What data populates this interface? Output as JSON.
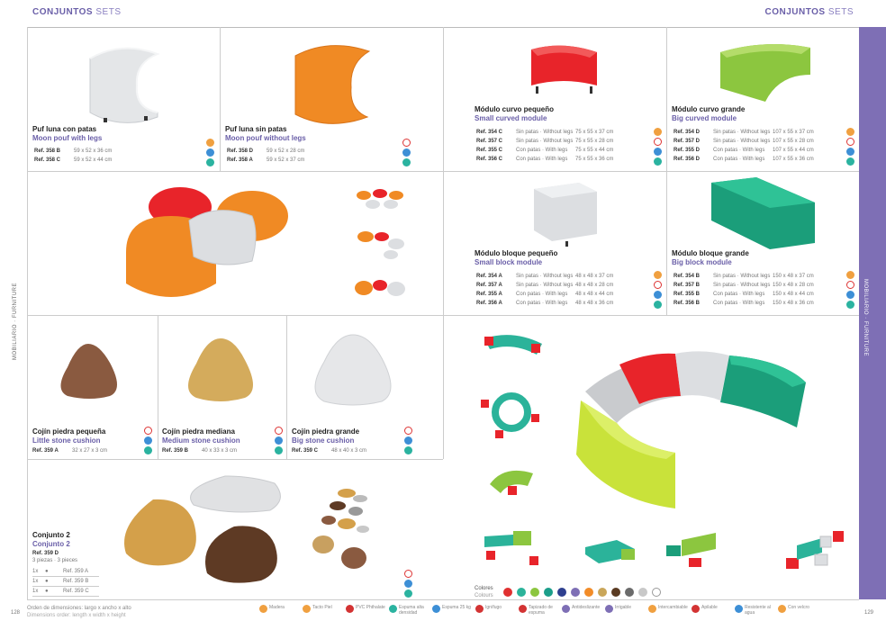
{
  "header": {
    "left_bold": "CONJUNTOS",
    "left_light": "SETS",
    "right_bold": "CONJUNTOS",
    "right_light": "SETS"
  },
  "side": {
    "left": "MOBILIARIO · FURNITURE",
    "right": "MOBILIARIO · FURNITURE"
  },
  "products": {
    "moon_legs": {
      "title": "Puf luna con patas",
      "sub": "Moon pouf with legs",
      "rows": [
        {
          "ref": "Ref. 358 B",
          "dims": "59 x 52 x 36 cm"
        },
        {
          "ref": "Ref. 358 C",
          "dims": "59 x 52 x 44 cm"
        }
      ]
    },
    "moon_nolegs": {
      "title": "Puf luna sin patas",
      "sub": "Moon pouf without legs",
      "rows": [
        {
          "ref": "Ref. 358 D",
          "dims": "59 x 52 x 28 cm"
        },
        {
          "ref": "Ref. 358 A",
          "dims": "59 x 52 x 37 cm"
        }
      ]
    },
    "curve_small": {
      "title": "Módulo curvo pequeño",
      "sub": "Small curved module",
      "rows": [
        {
          "ref": "Ref. 354 C",
          "type": "Sin patas · Without legs",
          "dims": "75 x 55 x 37 cm"
        },
        {
          "ref": "Ref. 357 C",
          "type": "Sin patas · Without legs",
          "dims": "75 x 55 x 28 cm"
        },
        {
          "ref": "Ref. 355 C",
          "type": "Con patas · With legs",
          "dims": "75 x 55 x 44 cm"
        },
        {
          "ref": "Ref. 356 C",
          "type": "Con patas · With legs",
          "dims": "75 x 55 x 36 cm"
        }
      ]
    },
    "curve_big": {
      "title": "Módulo curvo grande",
      "sub": "Big curved module",
      "rows": [
        {
          "ref": "Ref. 354 D",
          "type": "Sin patas · Without legs",
          "dims": "107 x 55 x 37 cm"
        },
        {
          "ref": "Ref. 357 D",
          "type": "Sin patas · Without legs",
          "dims": "107 x 55 x 28 cm"
        },
        {
          "ref": "Ref. 355 D",
          "type": "Con patas · With legs",
          "dims": "107 x 55 x 44 cm"
        },
        {
          "ref": "Ref. 356 D",
          "type": "Con patas · With legs",
          "dims": "107 x 55 x 36 cm"
        }
      ]
    },
    "block_small": {
      "title": "Módulo bloque pequeño",
      "sub": "Small block module",
      "rows": [
        {
          "ref": "Ref. 354 A",
          "type": "Sin patas · Without legs",
          "dims": "48 x 48 x 37 cm"
        },
        {
          "ref": "Ref. 357 A",
          "type": "Sin patas · Without legs",
          "dims": "48 x 48 x 28 cm"
        },
        {
          "ref": "Ref. 355 A",
          "type": "Con patas · With legs",
          "dims": "48 x 48 x 44 cm"
        },
        {
          "ref": "Ref. 356 A",
          "type": "Con patas · With legs",
          "dims": "48 x 48 x 36 cm"
        }
      ]
    },
    "block_big": {
      "title": "Módulo bloque grande",
      "sub": "Big block module",
      "rows": [
        {
          "ref": "Ref. 354 B",
          "type": "Sin patas · Without legs",
          "dims": "150 x 48 x 37 cm"
        },
        {
          "ref": "Ref. 357 B",
          "type": "Sin patas · Without legs",
          "dims": "150 x 48 x 28 cm"
        },
        {
          "ref": "Ref. 355 B",
          "type": "Con patas · With legs",
          "dims": "150 x 48 x 44 cm"
        },
        {
          "ref": "Ref. 356 B",
          "type": "Con patas · With legs",
          "dims": "150 x 48 x 36 cm"
        }
      ]
    },
    "stone_small": {
      "title": "Cojín piedra pequeña",
      "sub": "Little stone cushion",
      "ref": "Ref. 359 A",
      "dims": "32 x 27 x 3 cm"
    },
    "stone_medium": {
      "title": "Cojín piedra mediana",
      "sub": "Medium stone cushion",
      "ref": "Ref. 359 B",
      "dims": "40 x 33 x 3 cm"
    },
    "stone_big": {
      "title": "Cojín piedra grande",
      "sub": "Big stone cushion",
      "ref": "Ref. 359 C",
      "dims": "48 x 40 x 3 cm"
    },
    "set2": {
      "title": "Conjunto 2",
      "sub": "Conjunto 2",
      "ref": "Ref. 359 D",
      "pieces": "3 piezas · 3 pieces",
      "items": [
        {
          "qty": "1x",
          "ref": "Ref. 359 A"
        },
        {
          "qty": "1x",
          "ref": "Ref. 359 B"
        },
        {
          "qty": "1x",
          "ref": "Ref. 359 C"
        }
      ]
    }
  },
  "colours": {
    "label": "Colores",
    "label_en": "Colours",
    "swatches": [
      "#e03030",
      "#2bb39a",
      "#8cc63f",
      "#1b9e8a",
      "#2e3f8f",
      "#7e6fb5",
      "#f28c28",
      "#c9a65a",
      "#5a3b22",
      "#6b6b6b",
      "#c8c8c8",
      "#ffffff"
    ]
  },
  "footer": {
    "note": "Orden de dimensiones: largo x ancho x alto",
    "note_en": "Dimensions order: length x width x height",
    "page_left": "128",
    "page_right": "129",
    "legend": [
      {
        "label": "Madera",
        "color": "#f0a040"
      },
      {
        "label": "Tacto Piel",
        "color": "#f0a040"
      },
      {
        "label": "PVC Phthalate",
        "color": "#d33333"
      },
      {
        "label": "Espuma alta densidad",
        "color": "#2bb3a0"
      },
      {
        "label": "Espuma 25 kg",
        "color": "#3d8fd6"
      },
      {
        "label": "Ignífugo",
        "color": "#d33333"
      },
      {
        "label": "Tapizado de espuma",
        "color": "#d33333"
      },
      {
        "label": "Antideslizante",
        "color": "#7e6fb5"
      },
      {
        "label": "Irrigable",
        "color": "#7e6fb5"
      },
      {
        "label": "Intercambiable",
        "color": "#f0a040"
      },
      {
        "label": "Apilable",
        "color": "#d33333"
      },
      {
        "label": "Resistente al agua",
        "color": "#3d8fd6"
      },
      {
        "label": "Con velcro",
        "color": "#f0a040"
      }
    ]
  }
}
